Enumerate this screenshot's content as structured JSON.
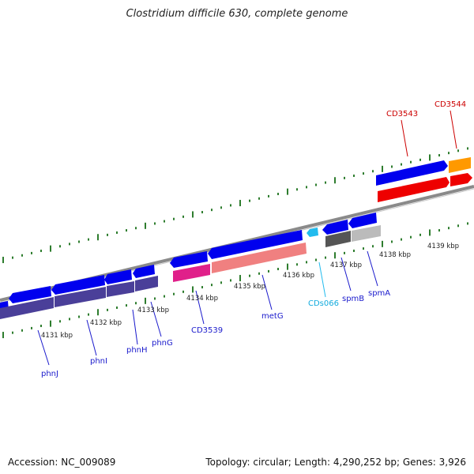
{
  "title": "Clostridium difficile 630, complete genome",
  "footer": {
    "accession": "Accession: NC_009089",
    "summary": "Topology: circular; Length: 4,290,252 bp; Genes: 3,926"
  },
  "colors": {
    "background": "#ffffff",
    "backbone": "#8a8a8a",
    "tick": "#2e7d2e",
    "forward_gene": "#0000ee",
    "forward_cds": "#ee0000",
    "unnamed_gene": "#ff9900",
    "metg_cds": "#f08080",
    "cd3539_cds": "#e0208a",
    "spm_cds_dark": "#555555",
    "spm_cds_light": "#bbbbbb",
    "phn_cds": "#4a3f99",
    "rna": "#22bbee",
    "label_gene": "#1a1acc",
    "label_cd": "#cc0000",
    "label_rna": "#11aadd",
    "label_kbp": "#222222"
  },
  "kbp_labels": [
    "4131 kbp",
    "4132 kbp",
    "4133 kbp",
    "4134 kbp",
    "4135 kbp",
    "4136 kbp",
    "4137 kbp",
    "4138 kbp",
    "4139 kbp"
  ],
  "gene_labels": [
    "phnJ",
    "phnI",
    "phnH",
    "phnG",
    "CD3539",
    "metG",
    "CDs066",
    "spmB",
    "spmA",
    "CD3543",
    "CD3544"
  ],
  "strand_direction": [
    "reverse",
    "forward"
  ]
}
